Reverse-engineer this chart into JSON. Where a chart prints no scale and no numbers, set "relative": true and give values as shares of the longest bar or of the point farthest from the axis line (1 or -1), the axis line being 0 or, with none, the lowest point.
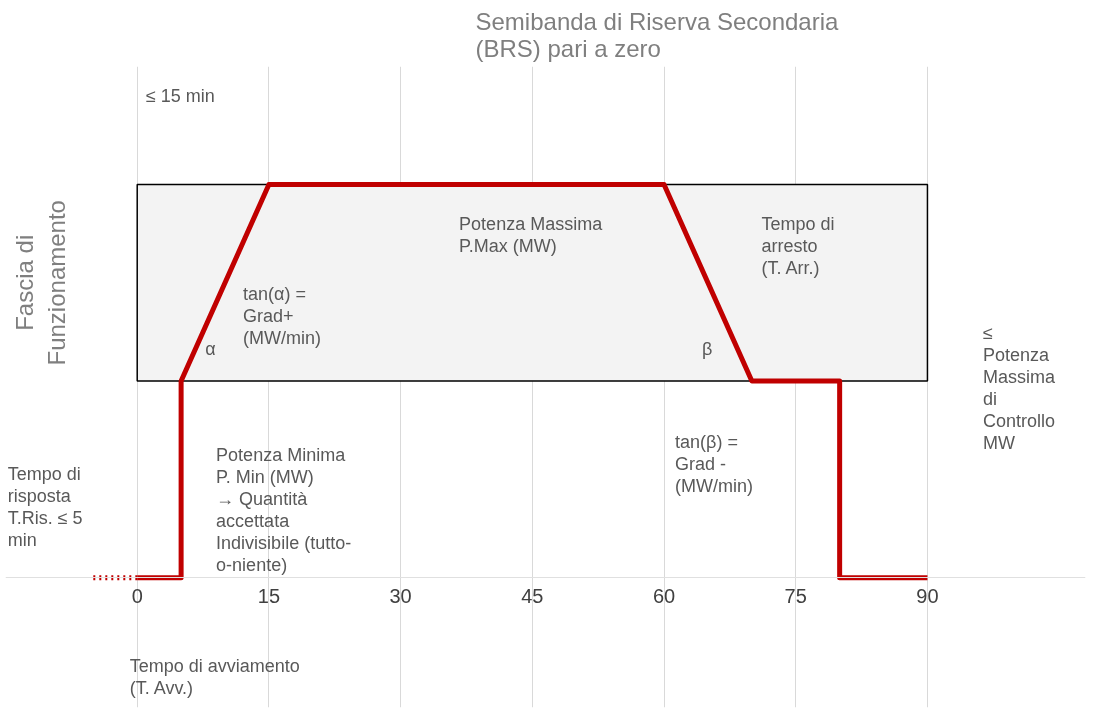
{
  "chart_data": {
    "type": "line",
    "title": "Semibanda di Riserva Secondaria\n(BRS) pari a zero",
    "relative": true,
    "xlim": [
      -15,
      108
    ],
    "xticks": [
      0,
      15,
      30,
      45,
      60,
      75,
      90
    ],
    "grid": "x",
    "line_style": "solid",
    "marker": "none",
    "series": [
      {
        "color": "#c00000",
        "x": [
          0,
          5,
          5,
          15,
          60,
          70,
          80,
          80,
          90
        ],
        "values": [
          0,
          0,
          0.5,
          1,
          1,
          0.5,
          0.5,
          0,
          0
        ]
      },
      {
        "color": "#c00000",
        "x": [
          -5,
          0
        ],
        "values": [
          0,
          0
        ],
        "line_style": "dotted"
      }
    ],
    "bands": [
      {
        "axis": "y",
        "from": 0.5,
        "to": 1,
        "label": "Fascia di\nFunzionamento",
        "color": "#f3f3f3"
      }
    ],
    "annotations": [
      "≤ 15 min",
      "Potenza Massima\nP.Max (MW)",
      "tan(α) =\nGrad+\n(MW/min)",
      "α",
      "β",
      "Tempo di\narresto\n(T. Arr.)",
      "tan(β) =\nGrad -\n(MW/min)",
      "Potenza Minima\nP. Min (MW)\n→ Quantità\naccettata\nIndivisibile (tutto-\no-niente)",
      "Tempo di\nrisposta\nT.Ris. ≤ 5\nmin",
      "≤\nPotenza\nMassima\ndi\nControllo\nMW",
      "Tempo di avviamento\n(T. Avv.)"
    ]
  }
}
